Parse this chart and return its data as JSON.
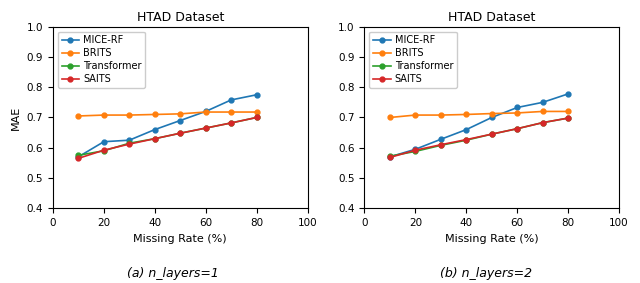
{
  "title": "HTAD Dataset",
  "xlabel": "Missing Rate (%)",
  "ylabel": "MAE",
  "x": [
    10,
    20,
    30,
    40,
    50,
    60,
    70,
    80
  ],
  "xlim": [
    0,
    100
  ],
  "ylim": [
    0.4,
    1.0
  ],
  "yticks": [
    0.4,
    0.5,
    0.6,
    0.7,
    0.8,
    0.9,
    1.0
  ],
  "xticks": [
    0,
    20,
    40,
    60,
    80,
    100
  ],
  "subplot1": {
    "caption": "(a) n_layers=1",
    "MICE-RF": [
      0.57,
      0.62,
      0.625,
      0.66,
      0.69,
      0.72,
      0.758,
      0.775
    ],
    "BRITS": [
      0.705,
      0.708,
      0.708,
      0.71,
      0.712,
      0.718,
      0.718,
      0.718
    ],
    "Transformer": [
      0.575,
      0.59,
      0.615,
      0.63,
      0.648,
      0.665,
      0.682,
      0.7
    ],
    "SAITS": [
      0.565,
      0.592,
      0.612,
      0.63,
      0.648,
      0.665,
      0.682,
      0.7
    ]
  },
  "subplot2": {
    "caption": "(b) n_layers=2",
    "MICE-RF": [
      0.57,
      0.595,
      0.628,
      0.66,
      0.7,
      0.733,
      0.75,
      0.778
    ],
    "BRITS": [
      0.7,
      0.708,
      0.708,
      0.71,
      0.713,
      0.715,
      0.72,
      0.72
    ],
    "Transformer": [
      0.572,
      0.588,
      0.608,
      0.625,
      0.645,
      0.663,
      0.683,
      0.698
    ],
    "SAITS": [
      0.568,
      0.592,
      0.61,
      0.627,
      0.645,
      0.663,
      0.683,
      0.698
    ]
  },
  "colors": {
    "MICE-RF": "#1f77b4",
    "BRITS": "#ff7f0e",
    "Transformer": "#2ca02c",
    "SAITS": "#d62728"
  },
  "legend_order": [
    "MICE-RF",
    "BRITS",
    "Transformer",
    "SAITS"
  ],
  "figsize": [
    6.4,
    2.83
  ],
  "dpi": 100,
  "caption1": "(a) n_layers=1",
  "caption2": "(b) n_layers=2"
}
